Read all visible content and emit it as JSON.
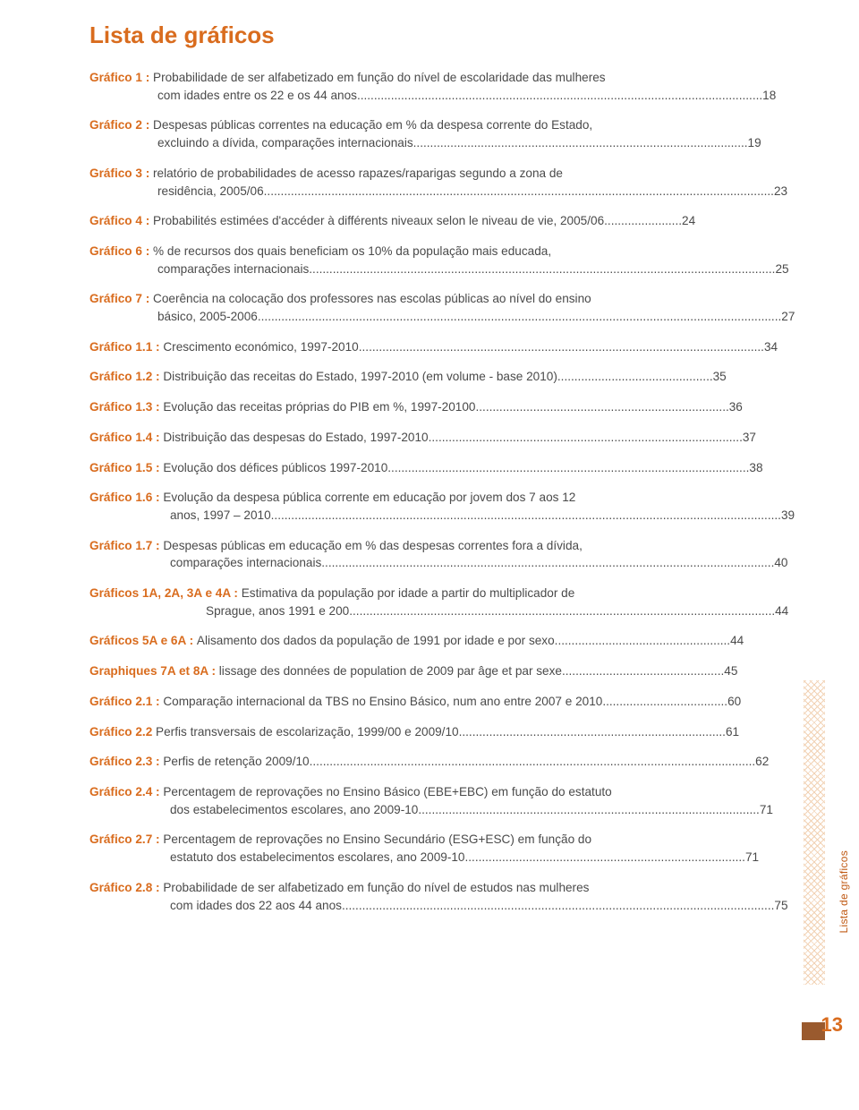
{
  "title": "Lista de gráficos",
  "side_label": "Lista de gráficos",
  "page_number": "13",
  "colors": {
    "accent": "#d96c1e",
    "text": "#4a4a4a",
    "block": "#9a5a2e"
  },
  "entries": [
    {
      "label": "Gráfico 1 :",
      "text": "Probabilidade de ser alfabetizado em função do nível de escolaridade das mulheres",
      "line2": "com idades entre os 22 e os 44 anos",
      "page": "18",
      "indent": "indent"
    },
    {
      "label": "Gráfico 2 :",
      "text": "Despesas públicas correntes na educação em % da despesa corrente do Estado,",
      "line2": "excluindo a dívida, comparações internacionais",
      "page": "19",
      "indent": "indent"
    },
    {
      "label": "Gráfico 3 :",
      "text": "relatório de probabilidades de acesso rapazes/raparigas segundo a zona de",
      "line2": "residência, 2005/06",
      "page": "23",
      "indent": "indent"
    },
    {
      "label": "Gráfico 4 :",
      "text": "Probabilités estimées d'accéder à différents niveaux selon le niveau de vie, 2005/06",
      "page": "24"
    },
    {
      "label": "Gráfico 6 :",
      "text": "% de recursos dos quais beneficiam os 10% da população mais educada,",
      "line2": "comparações internacionais",
      "page": "25",
      "indent": "indent"
    },
    {
      "label": "Gráfico 7 :",
      "text": "Coerência na colocação dos professores nas escolas públicas ao nível do ensino",
      "line2": "básico, 2005-2006",
      "page": "27",
      "indent": "indent"
    },
    {
      "label": "Gráfico 1.1 :",
      "text": "Crescimento económico, 1997-2010",
      "page": "34"
    },
    {
      "label": "Gráfico 1.2 :",
      "text": "Distribuição das receitas do Estado, 1997-2010 (em volume - base 2010)",
      "page": "35"
    },
    {
      "label": "Gráfico 1.3 :",
      "text": "Evolução das receitas próprias do PIB em  %, 1997-20100",
      "page": "36"
    },
    {
      "label": "Gráfico 1.4 :",
      "text": "Distribuição das despesas do Estado, 1997-2010",
      "page": "37"
    },
    {
      "label": "Gráfico 1.5 :",
      "text": "Evolução dos défices públicos 1997-2010",
      "page": "38"
    },
    {
      "label": "Gráfico 1.6 :",
      "text": "Evolução da despesa pública corrente em educação por jovem dos 7 aos 12",
      "line2": "anos, 1997 – 2010",
      "page": "39",
      "indent": "indent-small"
    },
    {
      "label": "Gráfico 1.7 :",
      "text": "Despesas públicas em educação em  % das despesas correntes fora a dívida,",
      "line2": "comparações internacionais",
      "page": "40",
      "indent": "indent-small"
    },
    {
      "label": "Gráficos 1A, 2A, 3A e 4A :",
      "text": "Estimativa da população por idade a partir do multiplicador de",
      "line2": "Sprague, anos 1991 e 200",
      "page": "44",
      "indent": "indent2"
    },
    {
      "label": "Gráficos 5A e 6A :",
      "text": "Alisamento dos dados da população de 1991 por idade e por sexo",
      "page": "44"
    },
    {
      "label": "Graphiques 7A et 8A :",
      "text": "lissage des données de population de 2009 par âge et par sexe",
      "page": "45"
    },
    {
      "label": "Gráfico 2.1 :",
      "text": "Comparação internacional da TBS no Ensino Básico, num ano entre 2007 e 2010",
      "page": "60"
    },
    {
      "label": "Gráfico 2.2",
      "text": "Perfis transversais de escolarização, 1999/00 e 2009/10",
      "page": "61"
    },
    {
      "label": "Gráfico 2.3 :",
      "text": "Perfis de retenção 2009/10",
      "page": "62"
    },
    {
      "label": "Gráfico 2.4 :",
      "text": "Percentagem de reprovações no Ensino Básico (EBE+EBC) em função do estatuto",
      "line2": "dos estabelecimentos escolares, ano 2009-10",
      "page": "71",
      "indent": "indent-small"
    },
    {
      "label": "Gráfico 2.7 :",
      "text": "Percentagem de reprovações no Ensino Secundário (ESG+ESC) em função do",
      "line2": "estatuto dos estabelecimentos escolares, ano 2009-10",
      "page": "71",
      "indent": "indent-small"
    },
    {
      "label": "Gráfico 2.8 :",
      "text": "Probabilidade de ser alfabetizado em função do nível de estudos nas mulheres",
      "line2": "com idades dos 22 aos 44 anos",
      "page": "75",
      "indent": "indent-small"
    }
  ]
}
